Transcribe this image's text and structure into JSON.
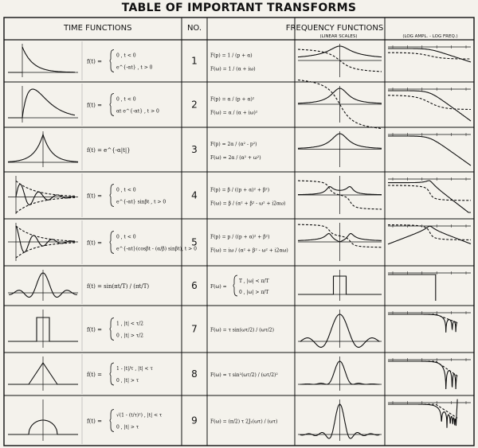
{
  "title": "TABLE OF IMPORTANT TRANSFORMS",
  "headers": {
    "time": "TIME FUNCTIONS",
    "no": "NO.",
    "freq": "FREQUENCY FUNCTIONS",
    "linear": "(LINEAR SCALES)",
    "log": "(LOG AMPL. - LOG FREQ.)"
  },
  "rows": [
    {
      "num": "1",
      "ft": [
        "f(t) =",
        "0 , t < 0",
        "e^{-αt} , t > 0"
      ],
      "fp": [
        "F(p) = 1 / (p + α)",
        "F(ω) = 1 / (α + iω)"
      ]
    },
    {
      "num": "2",
      "ft": [
        "f(t) =",
        "0 , t < 0",
        "αt e^{-αt} , t > 0"
      ],
      "fp": [
        "F(p) = α / (p + α)²",
        "F(ω) = α / (α + iω)²"
      ]
    },
    {
      "num": "3",
      "ft": [
        "f(t) = e^{-α|t|}"
      ],
      "fp": [
        "F(p) = 2α / (α² - p²)",
        "F(ω) = 2α / (α² + ω²)"
      ]
    },
    {
      "num": "4",
      "ft": [
        "f(t) =",
        "0 , t < 0",
        "e^{-αt} sinβt , t > 0"
      ],
      "fp": [
        "F(p) = β / ((p + α)² + β²)",
        "F(ω) = β / (α² + β² - ω² + i2αω)"
      ]
    },
    {
      "num": "5",
      "ft": [
        "f(t) =",
        "0 , t < 0",
        "e^{-αt}(cosβt - (α/β) sinβt), t > 0"
      ],
      "fp": [
        "F(p) = p / ((p + α)² + β²)",
        "F(ω) = iω / (α² + β² - ω² + i2αω)"
      ]
    },
    {
      "num": "6",
      "ft": [
        "f(t) = sin(πt/T) / (πt/T)"
      ],
      "fp": [
        "F(ω) =",
        "T , |ω| < π/T",
        "0 , |ω| > π/T"
      ]
    },
    {
      "num": "7",
      "ft": [
        "f(t) =",
        "1 , |t| < τ/2",
        "0 , |t| > τ/2"
      ],
      "fp": [
        "F(ω) = τ sin(ωτ/2) / (ωτ/2)"
      ]
    },
    {
      "num": "8",
      "ft": [
        "f(t) =",
        "1 - |t|/τ , |t| < τ",
        "0 , |t| > τ"
      ],
      "fp": [
        "F(ω) = τ sin²(ωτ/2) / (ωτ/2)²"
      ]
    },
    {
      "num": "9",
      "ft": [
        "f(t) =",
        "√(1 - (t/τ)²) , |t| < τ",
        "0 , |t| > τ"
      ],
      "fp": [
        "F(ω) = (π/2) τ 2J₁(ωτ) / (ωτ)"
      ]
    }
  ]
}
